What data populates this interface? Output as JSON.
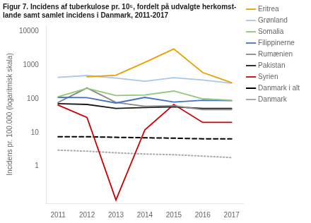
{
  "chart_data": {
    "type": "line",
    "title": "Figur 7. Incidens af tuberkulose pr. 10⁵, fordelt på udvalgte herkomst-\nlande samt samlet incidens i Danmark, 2011-2017",
    "ylabel": "Incidens pr. 100.000 (logaritmisk skala)",
    "x": [
      2011,
      2012,
      2013,
      2014,
      2015,
      2016,
      2017
    ],
    "series": [
      {
        "name": "Eritrea",
        "color": "#E8A000",
        "line_style": "solid",
        "values": [
          null,
          450,
          500,
          1200,
          3000,
          600,
          300
        ]
      },
      {
        "name": "Grønland",
        "color": "#A8C8E8",
        "line_style": "solid",
        "values": [
          430,
          490,
          410,
          330,
          420,
          360,
          290
        ]
      },
      {
        "name": "Somalia",
        "color": "#90C878",
        "line_style": "solid",
        "values": [
          115,
          205,
          125,
          130,
          170,
          100,
          90
        ]
      },
      {
        "name": "Filippinerne",
        "color": "#4472C4",
        "line_style": "solid",
        "values": [
          110,
          108,
          75,
          110,
          80,
          90,
          88
        ]
      },
      {
        "name": "Rumænien",
        "color": "#888888",
        "line_style": "solid",
        "values": [
          78,
          210,
          78,
          60,
          62,
          48,
          48
        ]
      },
      {
        "name": "Pakistan",
        "color": "#1a1a1a",
        "line_style": "solid",
        "values": [
          72,
          68,
          52,
          55,
          58,
          52,
          52
        ]
      },
      {
        "name": "Syrien",
        "color": "#CC0000",
        "line_style": "solid",
        "values": [
          65,
          28,
          0.1,
          12,
          68,
          20,
          20
        ]
      },
      {
        "name": "Danmark i alt",
        "color": "#000000",
        "line_style": "dashed",
        "values": [
          7.5,
          7.5,
          7.2,
          7.0,
          6.8,
          6.5,
          6.5
        ]
      },
      {
        "name": "Danmark",
        "color": "#AAAAAA",
        "line_style": "dotted",
        "values": [
          3.0,
          2.8,
          2.5,
          2.3,
          2.2,
          2.0,
          1.8
        ]
      }
    ],
    "xlim": [
      2010.6,
      2017.4
    ],
    "xticks": [
      2011,
      2012,
      2013,
      2014,
      2015,
      2016,
      2017
    ],
    "ylim": [
      0.08,
      15000
    ],
    "yticks": [
      1,
      10,
      100,
      1000,
      10000
    ],
    "log": "y",
    "grid": false,
    "legend": "right"
  }
}
